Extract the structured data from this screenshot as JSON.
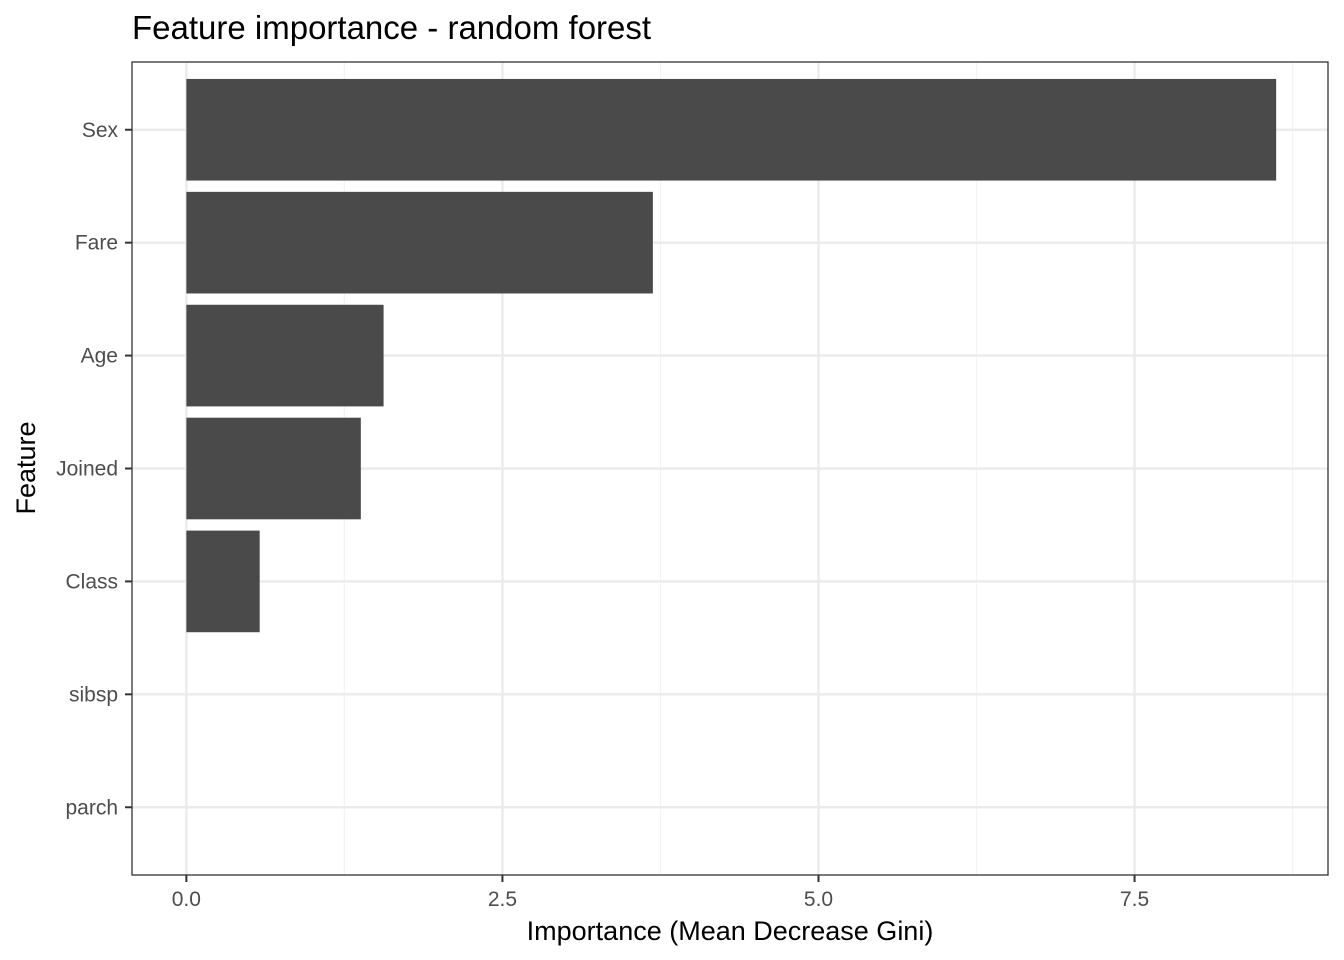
{
  "chart_data": {
    "type": "bar",
    "orientation": "horizontal",
    "title": "Feature importance - random forest",
    "xlabel": "Importance (Mean Decrease Gini)",
    "ylabel": "Feature",
    "categories": [
      "Sex",
      "Fare",
      "Age",
      "Joined",
      "Class",
      "sibsp",
      "parch"
    ],
    "values": [
      8.62,
      3.69,
      1.56,
      1.38,
      0.58,
      0.0,
      0.0
    ],
    "xlim": [
      -0.43,
      9.03
    ],
    "x_ticks": [
      0.0,
      2.5,
      5.0,
      7.5
    ],
    "x_tick_labels": [
      "0.0",
      "2.5",
      "5.0",
      "7.5"
    ],
    "grid": true,
    "colors": {
      "bar": "#4a4a4a",
      "grid_major": "#ebebeb",
      "grid_minor": "#f3f3f3",
      "panel_border": "#333333",
      "tick_text": "#4d4d4d"
    }
  }
}
